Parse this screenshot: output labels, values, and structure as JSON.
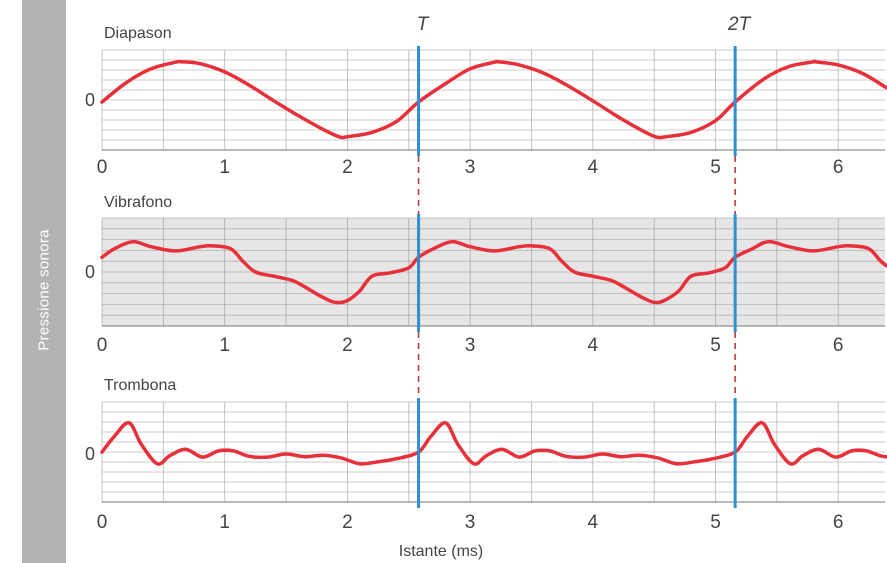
{
  "y_axis_label": "Pressione sonora",
  "colors": {
    "waveform": "#e8303a",
    "period_line": "#2f8fd0",
    "panel_grid": "#888888",
    "panel_shade": "#e6e6e6",
    "sidebar": "#b3b3b3",
    "text": "#444444"
  },
  "period_markers": [
    {
      "label": "T",
      "x": 2.58
    },
    {
      "label": "2T",
      "x": 5.16
    }
  ],
  "chart_data": [
    {
      "type": "line",
      "title": "Diapason",
      "xlabel": "",
      "ylabel": "",
      "zero_label": "0",
      "x_tick_labels": [
        "0",
        "1",
        "2",
        "3",
        "4",
        "5",
        "6"
      ],
      "xlim": [
        0,
        6.55
      ],
      "ylim": [
        -1,
        1
      ],
      "shaded": false,
      "x": [
        0,
        0.2,
        0.4,
        0.6,
        0.65,
        0.8,
        1.0,
        1.2,
        1.4,
        1.6,
        1.8,
        1.94,
        2.0,
        2.2,
        2.4,
        2.58,
        2.8,
        3.0,
        3.2,
        3.23,
        3.4,
        3.6,
        3.8,
        4.0,
        4.2,
        4.4,
        4.52,
        4.6,
        4.8,
        5.0,
        5.16,
        5.4,
        5.6,
        5.8,
        5.81,
        6.0,
        6.2,
        6.4,
        6.55
      ],
      "y": [
        -0.05,
        0.45,
        0.8,
        0.97,
        0.98,
        0.93,
        0.72,
        0.38,
        -0.02,
        -0.4,
        -0.75,
        -0.95,
        -0.94,
        -0.83,
        -0.55,
        -0.05,
        0.42,
        0.8,
        0.97,
        0.98,
        0.9,
        0.69,
        0.36,
        -0.02,
        -0.42,
        -0.78,
        -0.95,
        -0.94,
        -0.83,
        -0.53,
        -0.05,
        0.55,
        0.86,
        0.98,
        0.98,
        0.9,
        0.68,
        0.3,
        0.0
      ]
    },
    {
      "type": "line",
      "title": "Vibrafono",
      "xlabel": "",
      "ylabel": "",
      "zero_label": "0",
      "x_tick_labels": [
        "0",
        "1",
        "2",
        "3",
        "4",
        "5",
        "6"
      ],
      "xlim": [
        0,
        6.55
      ],
      "ylim": [
        -1,
        1
      ],
      "shaded": true,
      "x": [
        0,
        0.1,
        0.25,
        0.4,
        0.6,
        0.8,
        0.9,
        1.05,
        1.15,
        1.25,
        1.4,
        1.55,
        1.65,
        1.8,
        1.9,
        2.0,
        2.1,
        2.2,
        2.35,
        2.5,
        2.58,
        2.7,
        2.85,
        3.0,
        3.2,
        3.4,
        3.5,
        3.65,
        3.75,
        3.85,
        4.0,
        4.15,
        4.25,
        4.4,
        4.5,
        4.58,
        4.7,
        4.8,
        4.95,
        5.08,
        5.16,
        5.3,
        5.43,
        5.6,
        5.8,
        6.0,
        6.1,
        6.25,
        6.35,
        6.45,
        6.55
      ],
      "y": [
        0.35,
        0.55,
        0.72,
        0.6,
        0.5,
        0.6,
        0.62,
        0.55,
        0.25,
        0.0,
        -0.1,
        -0.2,
        -0.35,
        -0.6,
        -0.72,
        -0.68,
        -0.45,
        -0.1,
        -0.02,
        0.1,
        0.35,
        0.55,
        0.72,
        0.6,
        0.5,
        0.6,
        0.62,
        0.55,
        0.25,
        0.0,
        -0.1,
        -0.2,
        -0.35,
        -0.6,
        -0.72,
        -0.68,
        -0.45,
        -0.1,
        -0.02,
        0.1,
        0.35,
        0.55,
        0.72,
        0.6,
        0.5,
        0.6,
        0.62,
        0.55,
        0.25,
        0.05,
        -0.02
      ]
    },
    {
      "type": "line",
      "title": "Trombona",
      "xlabel": "Istante (ms)",
      "ylabel": "",
      "zero_label": "0",
      "x_tick_labels": [
        "0",
        "1",
        "2",
        "3",
        "4",
        "5",
        "6"
      ],
      "xlim": [
        0,
        6.55
      ],
      "ylim": [
        -1,
        1
      ],
      "shaded": false,
      "x": [
        0,
        0.1,
        0.22,
        0.32,
        0.45,
        0.55,
        0.68,
        0.82,
        0.95,
        1.07,
        1.2,
        1.35,
        1.5,
        1.65,
        1.8,
        1.95,
        2.1,
        2.25,
        2.4,
        2.58,
        2.68,
        2.8,
        2.9,
        3.03,
        3.13,
        3.26,
        3.4,
        3.53,
        3.65,
        3.78,
        3.93,
        4.08,
        4.23,
        4.38,
        4.53,
        4.68,
        4.83,
        4.98,
        5.16,
        5.26,
        5.38,
        5.48,
        5.61,
        5.71,
        5.84,
        5.98,
        6.11,
        6.23,
        6.36,
        6.5
      ],
      "y": [
        0.05,
        0.45,
        0.8,
        0.25,
        -0.25,
        -0.05,
        0.12,
        -0.08,
        0.08,
        0.08,
        -0.06,
        -0.08,
        0.0,
        -0.07,
        -0.03,
        -0.1,
        -0.25,
        -0.2,
        -0.12,
        0.05,
        0.45,
        0.8,
        0.25,
        -0.25,
        -0.05,
        0.12,
        -0.08,
        0.08,
        0.08,
        -0.06,
        -0.08,
        0.0,
        -0.07,
        -0.03,
        -0.1,
        -0.25,
        -0.2,
        -0.12,
        0.05,
        0.45,
        0.8,
        0.25,
        -0.25,
        -0.05,
        0.12,
        -0.08,
        0.08,
        0.08,
        -0.06,
        -0.08
      ]
    }
  ]
}
